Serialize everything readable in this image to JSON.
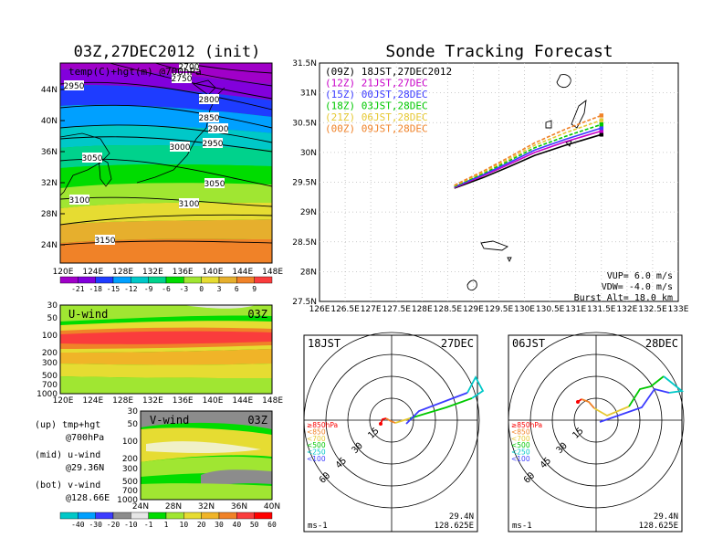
{
  "palettes": {
    "temperature": [
      "#a000c8",
      "#8200dc",
      "#1e3cff",
      "#00a0ff",
      "#00c8c8",
      "#00d28c",
      "#00dc00",
      "#a0e632",
      "#e6dc32",
      "#e6af2d",
      "#f08228",
      "#fa3c3c"
    ],
    "wind": [
      "#00c8c8",
      "#00a0ff",
      "#3c3cff",
      "#8c8c8c",
      "#e6e6e6",
      "#00dc00",
      "#a0e632",
      "#e6dc32",
      "#f0b428",
      "#f08228",
      "#fa3c3c",
      "#ff0000"
    ]
  },
  "left_panel": {
    "title": "03Z,27DEC2012 (init)",
    "map_label": "temp(C)+hgt(m) @700hPa",
    "lat_labels": [
      "44N",
      "40N",
      "36N",
      "32N",
      "28N",
      "24N"
    ],
    "lon_labels": [
      "120E",
      "124E",
      "128E",
      "132E",
      "136E",
      "140E",
      "144E",
      "148E"
    ],
    "height_contours": [
      "2950",
      "2800",
      "2750",
      "2700",
      "2850",
      "2900",
      "3000",
      "2950",
      "3050",
      "3050",
      "3100",
      "3100",
      "3150"
    ],
    "temp_colorbar": [
      "-21",
      "-18",
      "-15",
      "-12",
      "-9",
      "-6",
      "-3",
      "0",
      "3",
      "6",
      "9"
    ],
    "uwind_label": "U-wind",
    "uwind_time": "03Z",
    "uwind_pressure": [
      "30",
      "50",
      "100",
      "200",
      "300",
      "500",
      "700",
      "1000"
    ],
    "uwind_lon": [
      "120E",
      "124E",
      "128E",
      "132E",
      "136E",
      "140E",
      "144E",
      "148E"
    ],
    "vwind_label": "V-wind",
    "vwind_time": "03Z",
    "vwind_pressure": [
      "30",
      "50",
      "100",
      "200",
      "300",
      "500",
      "700",
      "1000"
    ],
    "vwind_lat": [
      "24N",
      "28N",
      "32N",
      "36N",
      "40N"
    ],
    "wind_colorbar": [
      "-40",
      "-30",
      "-20",
      "-10",
      "-1",
      "1",
      "10",
      "20",
      "30",
      "40",
      "50",
      "60"
    ],
    "legend_lines": [
      {
        "a": "(up) tmp+hgt",
        "b": "@700hPa"
      },
      {
        "a": "(mid) u-wind",
        "b": "@29.36N"
      },
      {
        "a": "(bot) v-wind",
        "b": "@128.66E"
      }
    ]
  },
  "chart_data": [
    {
      "type": "line",
      "title": "Sonde Tracking Forecast",
      "x_ticks": [
        "126E",
        "126.5E",
        "127E",
        "127.5E",
        "128E",
        "128.5E",
        "129E",
        "129.5E",
        "130E",
        "130.5E",
        "131E",
        "131.5E",
        "132E",
        "132.5E",
        "133E"
      ],
      "y_ticks": [
        "27.5N",
        "28N",
        "28.5N",
        "29N",
        "29.5N",
        "30N",
        "30.5N",
        "31N",
        "31.5N"
      ],
      "xlim": [
        126,
        133
      ],
      "ylim": [
        27.5,
        31.5
      ],
      "grid": true,
      "legend_position": "top-left",
      "series": [
        {
          "name": "(09Z) 18JST,27DEC2012",
          "color": "#000000",
          "dash": "",
          "x": [
            128.63,
            129.2,
            129.7,
            130.2,
            130.8,
            131.5
          ],
          "y": [
            29.4,
            29.58,
            29.76,
            29.95,
            30.12,
            30.3
          ]
        },
        {
          "name": "(12Z) 21JST,27DEC",
          "color": "#c800c8",
          "dash": "",
          "x": [
            128.63,
            129.2,
            129.7,
            130.2,
            130.8,
            131.5
          ],
          "y": [
            29.41,
            29.61,
            29.8,
            30.0,
            30.18,
            30.36
          ]
        },
        {
          "name": "(15Z) 00JST,28DEC",
          "color": "#3c3cff",
          "dash": "",
          "x": [
            128.63,
            129.2,
            129.7,
            130.2,
            130.8,
            131.5
          ],
          "y": [
            29.42,
            29.63,
            29.83,
            30.04,
            30.22,
            30.41
          ]
        },
        {
          "name": "(18Z) 03JST,28DEC",
          "color": "#00c800",
          "dash": "4,2",
          "x": [
            128.63,
            129.2,
            129.7,
            130.2,
            130.8,
            131.5
          ],
          "y": [
            29.43,
            29.65,
            29.86,
            30.08,
            30.27,
            30.47
          ]
        },
        {
          "name": "(21Z) 06JST,28DEC",
          "color": "#e6c832",
          "dash": "4,2",
          "x": [
            128.63,
            129.2,
            129.7,
            130.2,
            130.8,
            131.5
          ],
          "y": [
            29.44,
            29.67,
            29.89,
            30.12,
            30.33,
            30.54
          ]
        },
        {
          "name": "(00Z) 09JST,28DEC",
          "color": "#f08228",
          "dash": "4,2",
          "x": [
            128.63,
            129.2,
            129.7,
            130.2,
            130.8,
            131.5
          ],
          "y": [
            29.45,
            29.69,
            29.92,
            30.16,
            30.39,
            30.62
          ]
        }
      ],
      "annotations": [
        "VUP=  6.0  m/s",
        "VDW= -4.0  m/s",
        "Burst Alt=  18.0  km"
      ]
    }
  ],
  "hodographs": [
    {
      "time": "18JST",
      "date": "27DEC",
      "lat": "29.4N",
      "lon": "128.625E",
      "unit": "ms-1",
      "ring_labels": [
        "15",
        "30",
        "45",
        "60"
      ],
      "levels": [
        {
          "label": "≥850hPa",
          "color": "#fa0000"
        },
        {
          "label": "<850",
          "color": "#f08228"
        },
        {
          "label": "<700",
          "color": "#e6c832"
        },
        {
          "label": "<500",
          "color": "#00c800"
        },
        {
          "label": "<250",
          "color": "#00c8c8"
        },
        {
          "label": "<100",
          "color": "#3c3cff"
        }
      ]
    },
    {
      "time": "06JST",
      "date": "28DEC",
      "lat": "29.4N",
      "lon": "128.625E",
      "unit": "ms-1",
      "ring_labels": [
        "15",
        "30",
        "45",
        "60"
      ],
      "levels": [
        {
          "label": "≥850hPa",
          "color": "#fa0000"
        },
        {
          "label": "<850",
          "color": "#f08228"
        },
        {
          "label": "<700",
          "color": "#e6c832"
        },
        {
          "label": "<500",
          "color": "#00c800"
        },
        {
          "label": "<250",
          "color": "#00c8c8"
        },
        {
          "label": "<100",
          "color": "#3c3cff"
        }
      ]
    }
  ]
}
